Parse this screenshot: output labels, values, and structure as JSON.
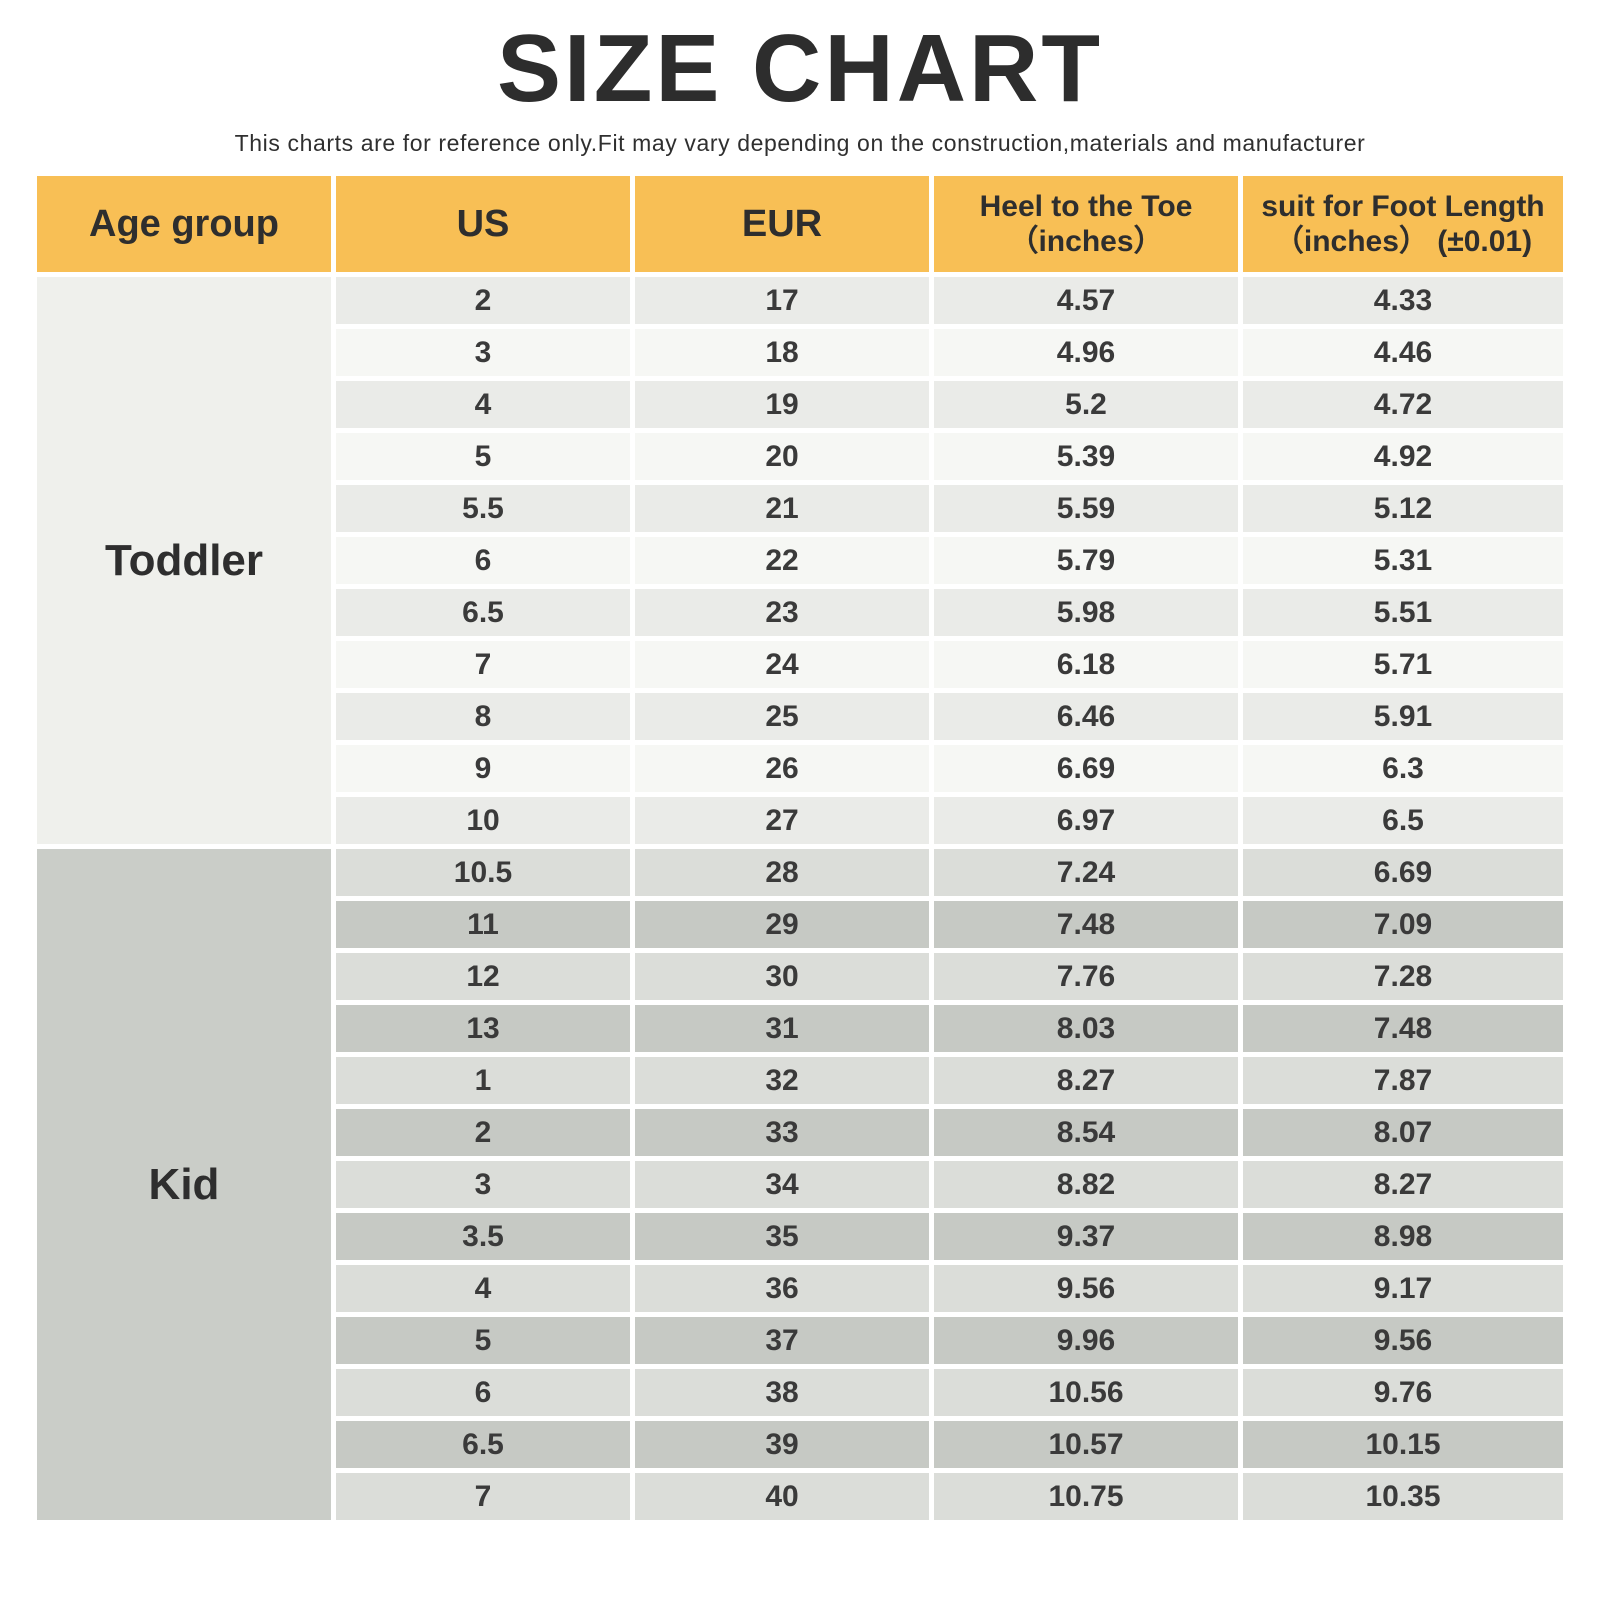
{
  "page": {
    "title": "SIZE CHART",
    "subtitle": "This charts are for reference only.Fit may vary depending on the construction,materials and manufacturer"
  },
  "colors": {
    "header_bg": "#f8bf55",
    "toddler_cell_bg": "#eff0ec",
    "toddler_row_dark": "#eaebe8",
    "toddler_row_light": "#f6f7f4",
    "kid_cell_bg": "#cacdc8",
    "kid_row_light": "#dbddd9",
    "kid_row_dark": "#c6c9c4",
    "text": "#3a3a3a"
  },
  "table": {
    "headers": [
      {
        "label": "Age group"
      },
      {
        "label": "US"
      },
      {
        "label": "EUR"
      },
      {
        "label": "Heel to the Toe",
        "sub": "（inches）"
      },
      {
        "label": "suit for Foot Length",
        "sub": "（inches） (±0.01)"
      }
    ],
    "sections": [
      {
        "age_group": "Toddler",
        "rows": [
          [
            "2",
            "17",
            "4.57",
            "4.33"
          ],
          [
            "3",
            "18",
            "4.96",
            "4.46"
          ],
          [
            "4",
            "19",
            "5.2",
            "4.72"
          ],
          [
            "5",
            "20",
            "5.39",
            "4.92"
          ],
          [
            "5.5",
            "21",
            "5.59",
            "5.12"
          ],
          [
            "6",
            "22",
            "5.79",
            "5.31"
          ],
          [
            "6.5",
            "23",
            "5.98",
            "5.51"
          ],
          [
            "7",
            "24",
            "6.18",
            "5.71"
          ],
          [
            "8",
            "25",
            "6.46",
            "5.91"
          ],
          [
            "9",
            "26",
            "6.69",
            "6.3"
          ],
          [
            "10",
            "27",
            "6.97",
            "6.5"
          ]
        ]
      },
      {
        "age_group": "Kid",
        "rows": [
          [
            "10.5",
            "28",
            "7.24",
            "6.69"
          ],
          [
            "11",
            "29",
            "7.48",
            "7.09"
          ],
          [
            "12",
            "30",
            "7.76",
            "7.28"
          ],
          [
            "13",
            "31",
            "8.03",
            "7.48"
          ],
          [
            "1",
            "32",
            "8.27",
            "7.87"
          ],
          [
            "2",
            "33",
            "8.54",
            "8.07"
          ],
          [
            "3",
            "34",
            "8.82",
            "8.27"
          ],
          [
            "3.5",
            "35",
            "9.37",
            "8.98"
          ],
          [
            "4",
            "36",
            "9.56",
            "9.17"
          ],
          [
            "5",
            "37",
            "9.96",
            "9.56"
          ],
          [
            "6",
            "38",
            "10.56",
            "9.76"
          ],
          [
            "6.5",
            "39",
            "10.57",
            "10.15"
          ],
          [
            "7",
            "40",
            "10.75",
            "10.35"
          ]
        ]
      }
    ]
  }
}
